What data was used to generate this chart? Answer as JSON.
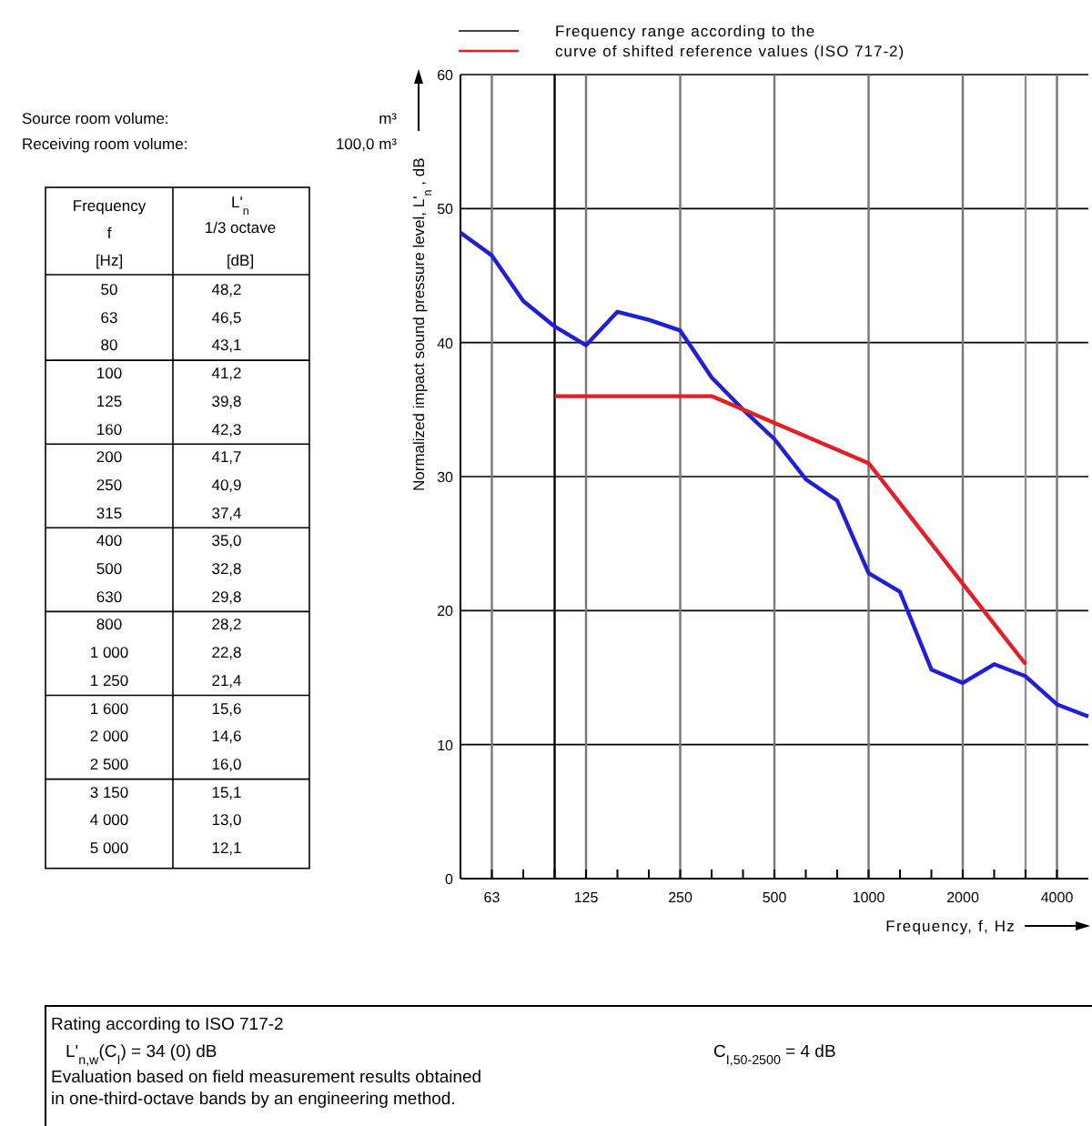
{
  "chart_data": {
    "type": "line",
    "ylabel": "Normalized impact sound pressure level, L'$_{n}$ , dB",
    "xlabel": "Frequency, f, Hz",
    "ylim": [
      0,
      60
    ],
    "yticks": [
      0,
      10,
      20,
      30,
      40,
      50,
      60
    ],
    "grid": true,
    "legend": "top",
    "categories": [
      null,
      "63",
      null,
      null,
      "125",
      null,
      null,
      "250",
      null,
      null,
      "500",
      null,
      null,
      "1000",
      null,
      null,
      "2000",
      null,
      null,
      "4000",
      null
    ],
    "series": [
      {
        "color": "#1f1fd6",
        "values": [
          48.2,
          46.5,
          43.1,
          41.2,
          39.8,
          42.3,
          41.7,
          40.9,
          37.4,
          35.0,
          32.8,
          29.8,
          28.2,
          22.8,
          21.4,
          15.6,
          14.6,
          16.0,
          15.1,
          13.0,
          12.1
        ]
      },
      {
        "name": "Frequency range according to the\ncurve of shifted reference values (ISO 717-2)",
        "color": "#e31e24",
        "values": [
          null,
          null,
          null,
          36,
          36,
          36,
          36,
          36,
          36,
          35,
          34,
          33,
          32,
          31,
          28,
          25,
          22,
          19,
          16,
          null,
          null
        ]
      }
    ],
    "annotations": [
      "Source room volume:",
      "m³",
      "Receiving room volume:",
      "100,0  m³",
      "Frequency",
      "f",
      "[Hz]",
      "L'$_{n}$",
      "1/3 octave",
      "[dB]",
      "Rating according to ISO 717-2",
      "L'$_{n,w}$(C$_{I}$) = 34 (0) dB",
      "C$_{I,50-2500}$  = 4 dB",
      "Evaluation based on field measurement results obtained",
      "in one-third-octave bands by an engineering method.",
      "50",
      "63",
      "80",
      "100",
      "125",
      "160",
      "200",
      "250",
      "315",
      "400",
      "500",
      "630",
      "800",
      "1 000",
      "1 250",
      "1 600",
      "2 000",
      "2 500",
      "3 150",
      "4 000",
      "5 000",
      "48,2",
      "46,5",
      "43,1",
      "41,2",
      "39,8",
      "42,3",
      "41,7",
      "40,9",
      "37,4",
      "35,0",
      "32,8",
      "29,8",
      "28,2",
      "22,8",
      "21,4",
      "15,6",
      "14,6",
      "16,0",
      "15,1",
      "13,0",
      "12,1"
    ]
  }
}
